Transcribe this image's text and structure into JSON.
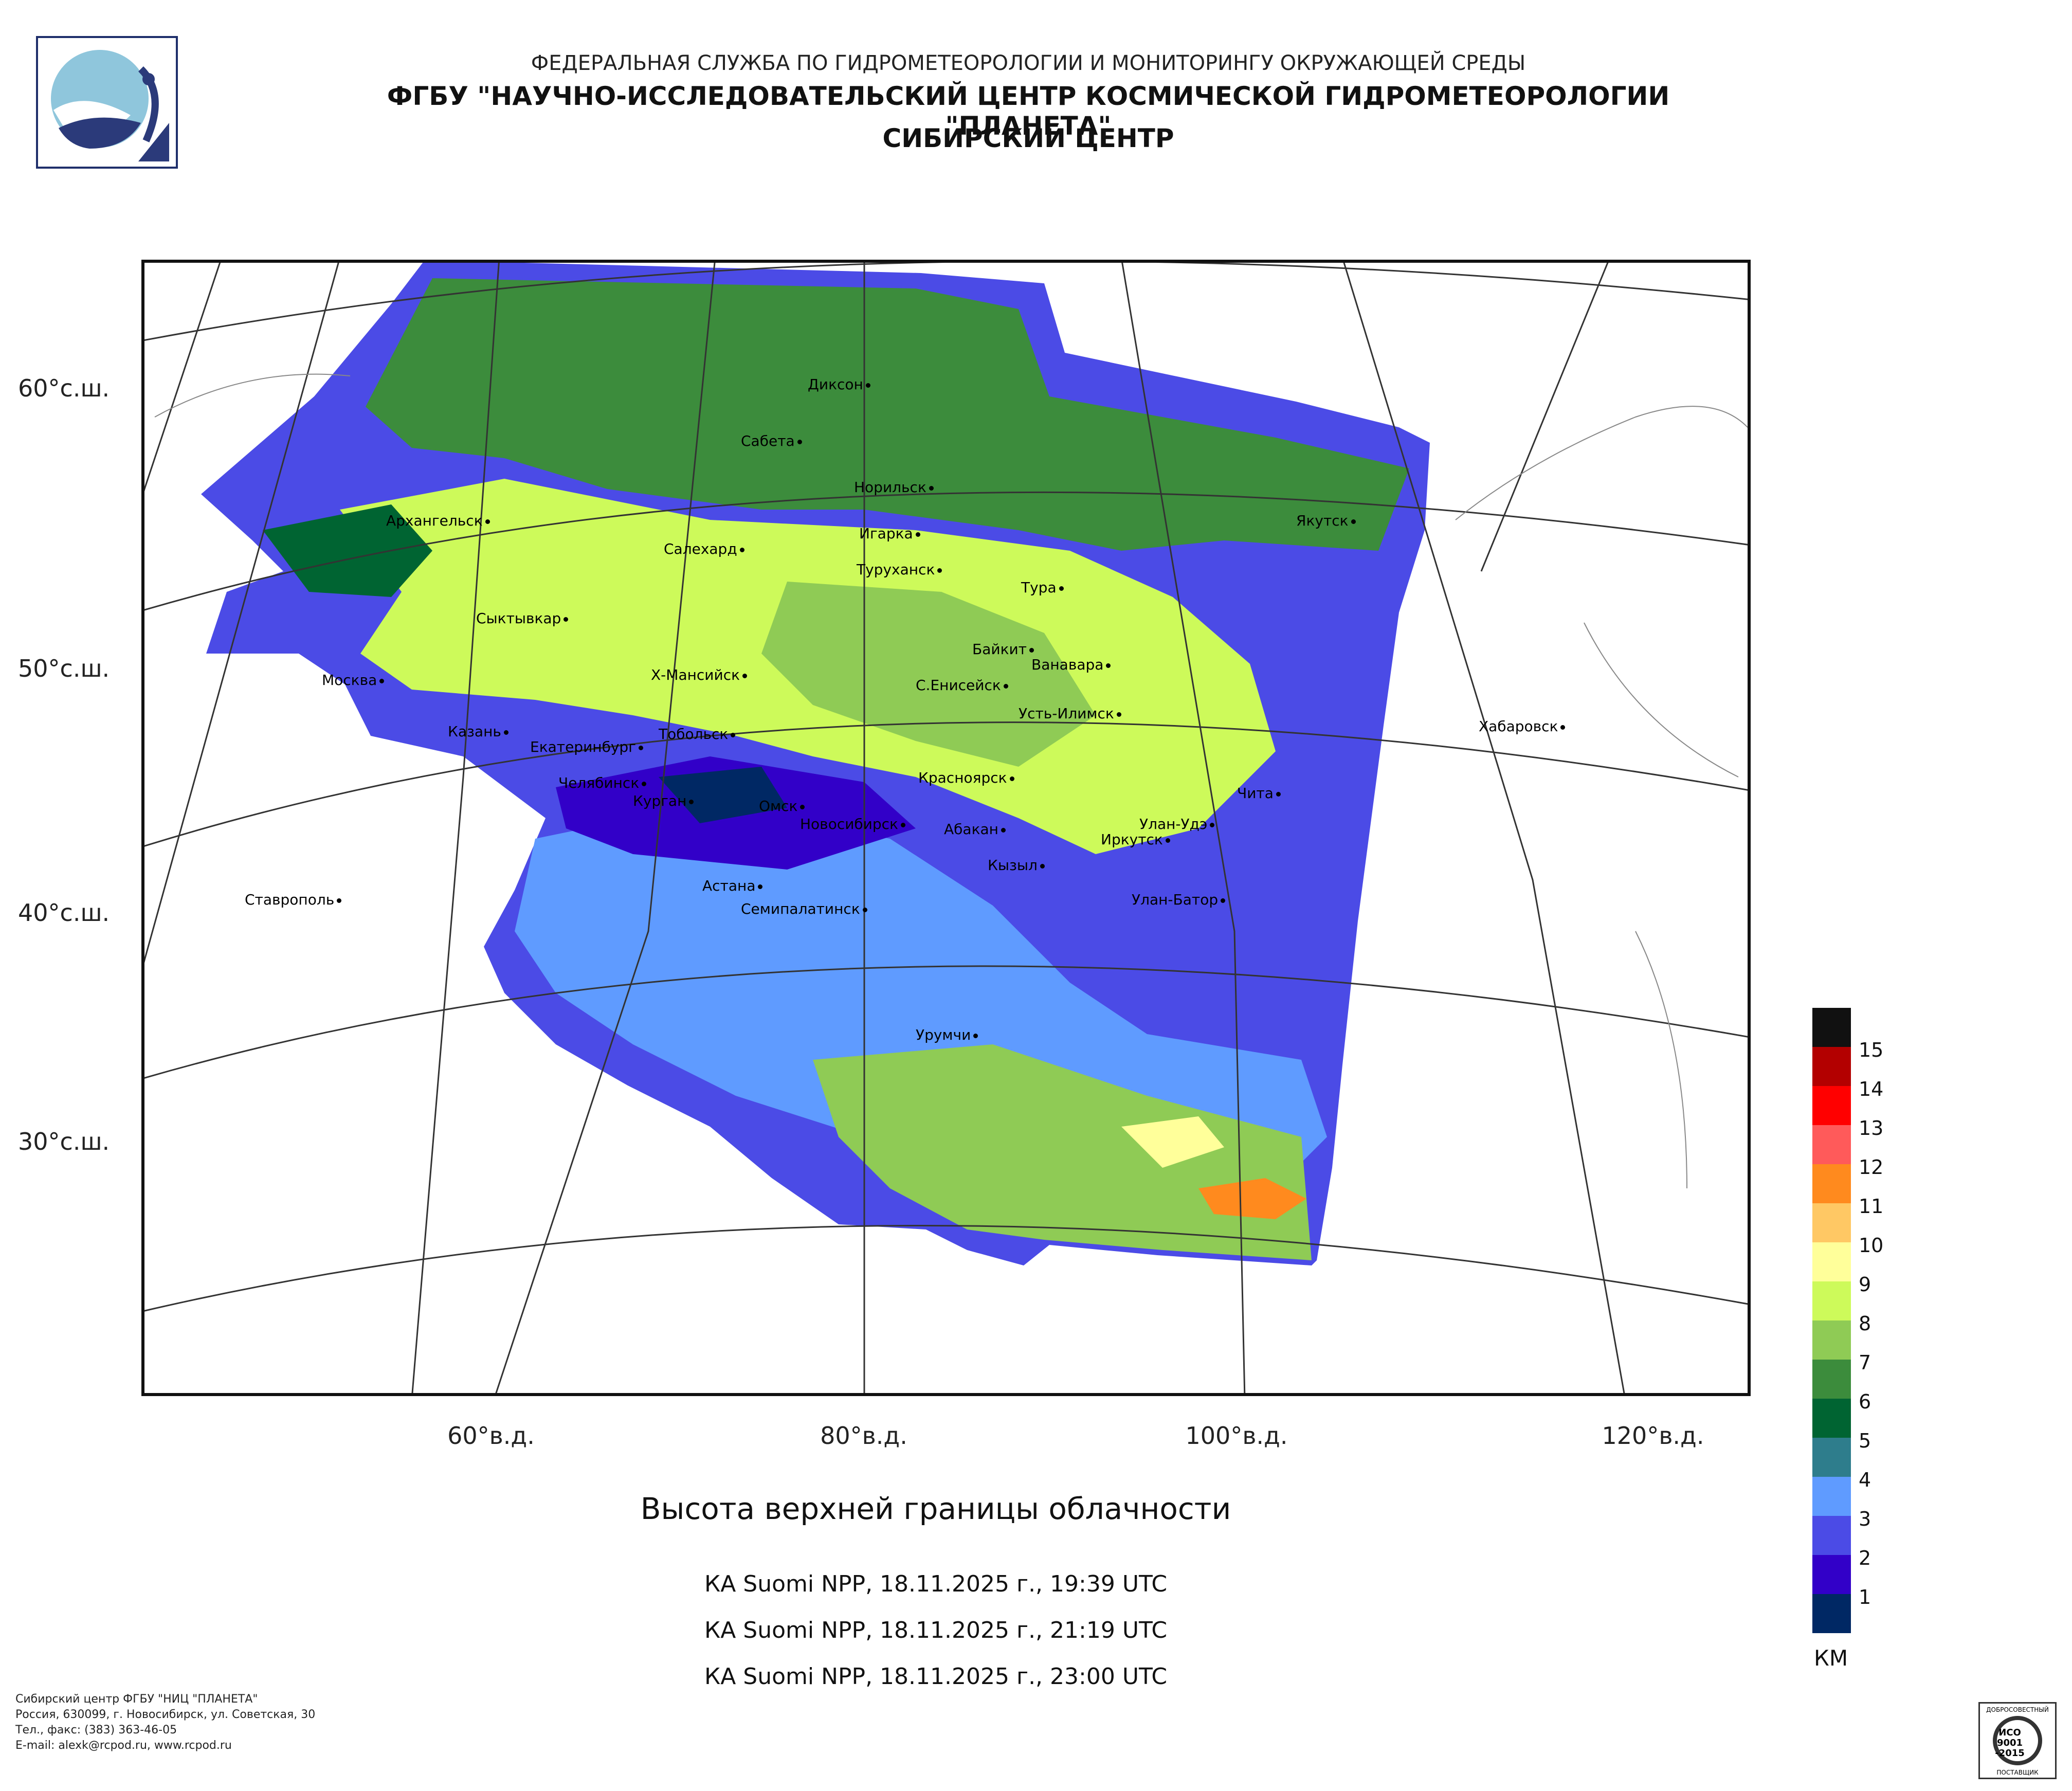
{
  "header": {
    "line1": "ФЕДЕРАЛЬНАЯ СЛУЖБА ПО ГИДРОМЕТЕОРОЛОГИИ И МОНИТОРИНГУ ОКРУЖАЮЩЕЙ СРЕДЫ",
    "line2": "ФГБУ \"НАУЧНО-ИССЛЕДОВАТЕЛЬСКИЙ ЦЕНТР КОСМИЧЕСКОЙ ГИДРОМЕТЕОРОЛОГИИ \"ПЛАНЕТА\"",
    "line3": "СИБИРСКИЙ ЦЕНТР"
  },
  "map": {
    "lat_labels": [
      "60°с.ш.",
      "50°с.ш.",
      "40°с.ш.",
      "30°с.ш."
    ],
    "lon_labels": [
      "60°в.д.",
      "80°в.д.",
      "100°в.д.",
      "120°в.д."
    ],
    "cities": [
      "Диксон",
      "Сабета",
      "Норильск",
      "Архангельск",
      "Игарка",
      "Салехард",
      "Туруханск",
      "Якутск",
      "Тура",
      "Сыктывкар",
      "Байкит",
      "Ванавара",
      "Х-Мансийск",
      "С.Енисейск",
      "Москва",
      "Усть-Илимск",
      "Казань",
      "Тобольск",
      "Хабаровск",
      "Екатеринбург",
      "Красноярск",
      "Челябинск",
      "Чита",
      "Курган",
      "Омск",
      "Улан-Удэ",
      "Новосибирск",
      "Абакан",
      "Иркутск",
      "Кызыл",
      "Астана",
      "Ставрополь",
      "Улан-Батор",
      "Семипалатинск",
      "Урумчи"
    ]
  },
  "caption": {
    "title": "Высота верхней границы облачности",
    "passes": [
      "КА Suomi NPP, 18.11.2025 г., 19:39 UTC",
      "КА Suomi NPP, 18.11.2025 г., 21:19 UTC",
      "КА Suomi NPP, 18.11.2025 г., 23:00 UTC"
    ]
  },
  "legend": {
    "unit": "КМ",
    "levels": [
      {
        "label": "15",
        "color": "#111111"
      },
      {
        "label": "14",
        "color": "#b30000"
      },
      {
        "label": "13",
        "color": "#ff0000"
      },
      {
        "label": "12",
        "color": "#ff5a5a"
      },
      {
        "label": "11",
        "color": "#ff8a1e"
      },
      {
        "label": "10",
        "color": "#ffc864"
      },
      {
        "label": "9",
        "color": "#ffff9a"
      },
      {
        "label": "8",
        "color": "#cdfa5a"
      },
      {
        "label": "7",
        "color": "#8fcb55"
      },
      {
        "label": "6",
        "color": "#3c8c3c"
      },
      {
        "label": "5",
        "color": "#006432"
      },
      {
        "label": "4",
        "color": "#2e7d8c"
      },
      {
        "label": "3",
        "color": "#5f9bff"
      },
      {
        "label": "2",
        "color": "#4b4be6"
      },
      {
        "label": "1",
        "color": "#3200c8"
      },
      {
        "label": "",
        "color": "#002864"
      }
    ]
  },
  "footer": {
    "line1": "Сибирский центр ФГБУ \"НИЦ \"ПЛАНЕТА\"",
    "line2": "Россия, 630099, г. Новосибирск, ул. Советская, 30",
    "line3": "Тел., факс: (383) 363-46-05",
    "line4": "E-mail: alexk@rcpod.ru, www.rcpod.ru"
  },
  "iso_badge": {
    "top": "ДОБРОСОВЕСТНЫЙ",
    "mid1": "ИСО",
    "mid2": "9001",
    "mid3": "-2015",
    "bottom": "ПОСТАВЩИК"
  }
}
